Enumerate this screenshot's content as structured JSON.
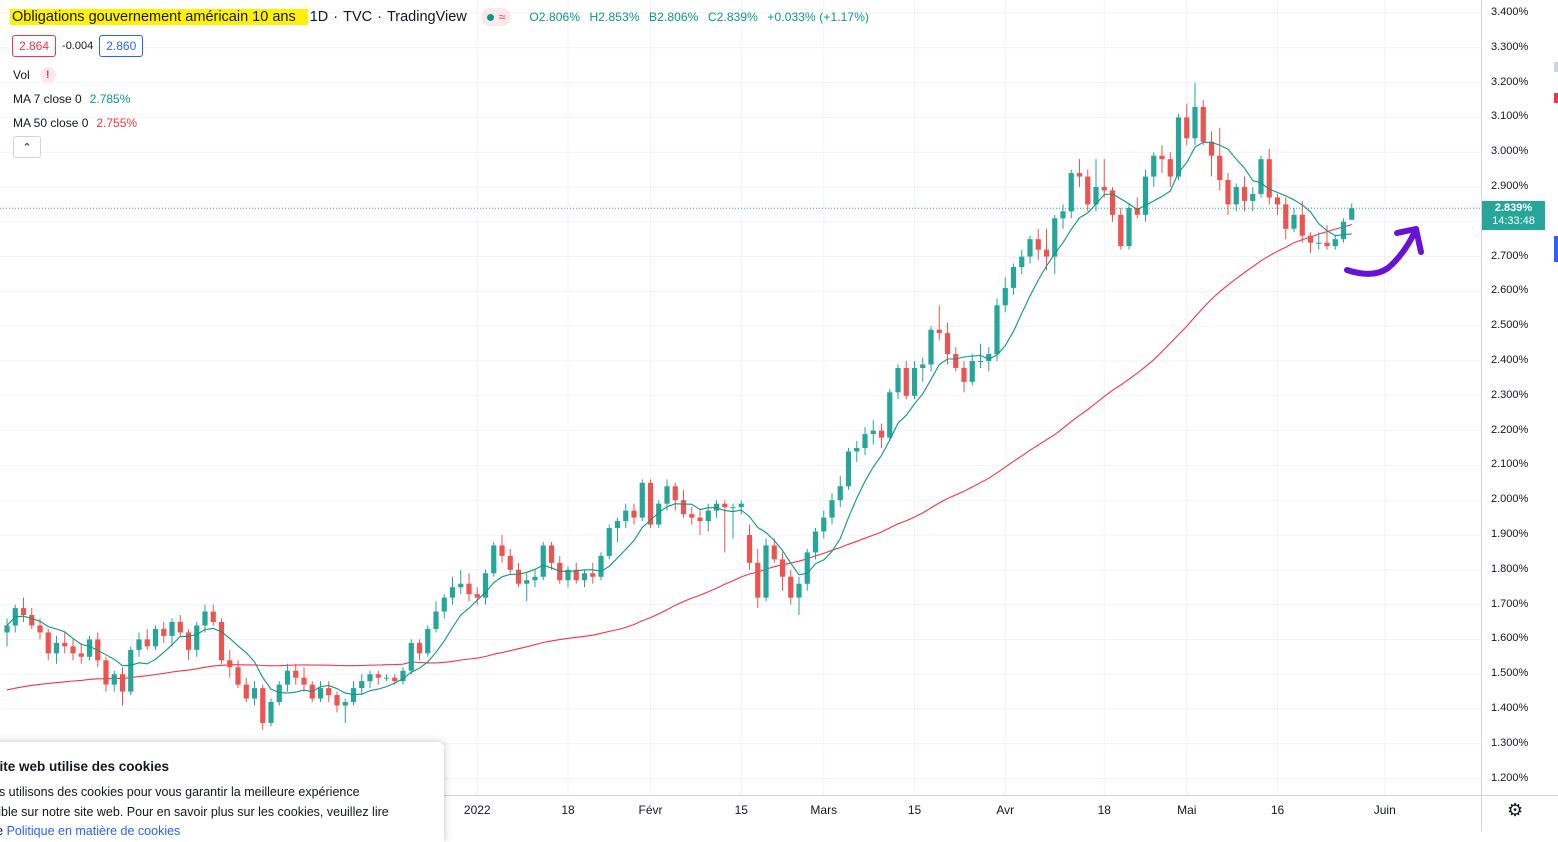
{
  "symbol": {
    "title": "Obligations gouvernement américain 10 ans",
    "interval": "1D",
    "exchange": "TVC",
    "provider": "TradingView",
    "meta_separator": "·",
    "status_icons": [
      "market-open-dot-icon",
      "delayed-wave-icon"
    ],
    "wave_glyph": "≈"
  },
  "ohlc": {
    "open": "O2.806%",
    "high": "H2.853%",
    "low": "B2.806%",
    "close": "C2.839%",
    "change": "+0.033% (+1.17%)"
  },
  "quote": {
    "bid": "2.864",
    "spread": "-0.004",
    "ask": "2.860"
  },
  "indicators": [
    {
      "label": "Vol",
      "warning": "!"
    },
    {
      "label": "MA 7 close 0",
      "value": "2.785%",
      "color": "#089981"
    },
    {
      "label": "MA 50 close 0",
      "value": "2.755%",
      "color": "#f23645"
    }
  ],
  "collapse_glyph": "⌃",
  "price_axis_labels": [
    "3.400%",
    "3.300%",
    "3.200%",
    "3.100%",
    "3.000%",
    "2.900%",
    "2.800%",
    "2.700%",
    "2.600%",
    "2.500%",
    "2.400%",
    "2.300%",
    "2.200%",
    "2.100%",
    "2.000%",
    "1.900%",
    "1.800%",
    "1.700%",
    "1.600%",
    "1.500%",
    "1.400%",
    "1.300%",
    "1.200%"
  ],
  "time_axis_labels": [
    "2022",
    "18",
    "Févr",
    "15",
    "Mars",
    "15",
    "Avr",
    "18",
    "Mai",
    "16",
    "Juin"
  ],
  "last_price_tag": {
    "price": "2.839%",
    "countdown": "14:33:48"
  },
  "settings_glyph": "⚙",
  "cookie_banner": {
    "title": "site web utilise des cookies",
    "line1": "us utilisons des cookies pour vous garantir la meilleure expérience",
    "line2": "sible sur notre site web. Pour en savoir plus sur les cookies, veuillez lire",
    "line3_prefix": "re ",
    "link_text": "Politique en matière de cookies"
  },
  "colors": {
    "up": "#26a69a",
    "down": "#ef5350",
    "ma7": "#089981",
    "ma50": "#f23645",
    "annotation": "#6a11d6",
    "highlight": "#fff200",
    "last_price_line": "#26a69a"
  },
  "chart_data": {
    "type": "candlestick",
    "y_unit": "%",
    "y_range": [
      1.2,
      3.4
    ],
    "last_price": 2.839,
    "annotation": "hand-drawn purple upward arrow pointing at the last candle",
    "candles": [
      {
        "o": 1.62,
        "h": 1.66,
        "l": 1.58,
        "c": 1.64
      },
      {
        "o": 1.64,
        "h": 1.7,
        "l": 1.62,
        "c": 1.69
      },
      {
        "o": 1.69,
        "h": 1.72,
        "l": 1.65,
        "c": 1.67
      },
      {
        "o": 1.67,
        "h": 1.69,
        "l": 1.63,
        "c": 1.64
      },
      {
        "o": 1.64,
        "h": 1.66,
        "l": 1.6,
        "c": 1.62
      },
      {
        "o": 1.62,
        "h": 1.63,
        "l": 1.54,
        "c": 1.56
      },
      {
        "o": 1.56,
        "h": 1.61,
        "l": 1.53,
        "c": 1.59
      },
      {
        "o": 1.59,
        "h": 1.62,
        "l": 1.56,
        "c": 1.58
      },
      {
        "o": 1.58,
        "h": 1.6,
        "l": 1.54,
        "c": 1.56
      },
      {
        "o": 1.56,
        "h": 1.59,
        "l": 1.53,
        "c": 1.55
      },
      {
        "o": 1.55,
        "h": 1.61,
        "l": 1.54,
        "c": 1.6
      },
      {
        "o": 1.6,
        "h": 1.62,
        "l": 1.52,
        "c": 1.54
      },
      {
        "o": 1.54,
        "h": 1.55,
        "l": 1.45,
        "c": 1.47
      },
      {
        "o": 1.47,
        "h": 1.51,
        "l": 1.45,
        "c": 1.5
      },
      {
        "o": 1.5,
        "h": 1.52,
        "l": 1.41,
        "c": 1.45
      },
      {
        "o": 1.45,
        "h": 1.58,
        "l": 1.44,
        "c": 1.57
      },
      {
        "o": 1.57,
        "h": 1.62,
        "l": 1.55,
        "c": 1.6
      },
      {
        "o": 1.6,
        "h": 1.63,
        "l": 1.57,
        "c": 1.58
      },
      {
        "o": 1.58,
        "h": 1.64,
        "l": 1.57,
        "c": 1.63
      },
      {
        "o": 1.63,
        "h": 1.65,
        "l": 1.59,
        "c": 1.61
      },
      {
        "o": 1.61,
        "h": 1.66,
        "l": 1.58,
        "c": 1.65
      },
      {
        "o": 1.65,
        "h": 1.67,
        "l": 1.61,
        "c": 1.62
      },
      {
        "o": 1.62,
        "h": 1.63,
        "l": 1.54,
        "c": 1.57
      },
      {
        "o": 1.57,
        "h": 1.65,
        "l": 1.55,
        "c": 1.64
      },
      {
        "o": 1.64,
        "h": 1.7,
        "l": 1.62,
        "c": 1.68
      },
      {
        "o": 1.68,
        "h": 1.7,
        "l": 1.64,
        "c": 1.65
      },
      {
        "o": 1.65,
        "h": 1.66,
        "l": 1.53,
        "c": 1.54
      },
      {
        "o": 1.54,
        "h": 1.57,
        "l": 1.49,
        "c": 1.52
      },
      {
        "o": 1.52,
        "h": 1.54,
        "l": 1.46,
        "c": 1.47
      },
      {
        "o": 1.47,
        "h": 1.49,
        "l": 1.42,
        "c": 1.43
      },
      {
        "o": 1.43,
        "h": 1.48,
        "l": 1.41,
        "c": 1.46
      },
      {
        "o": 1.46,
        "h": 1.47,
        "l": 1.34,
        "c": 1.36
      },
      {
        "o": 1.36,
        "h": 1.43,
        "l": 1.35,
        "c": 1.42
      },
      {
        "o": 1.42,
        "h": 1.48,
        "l": 1.41,
        "c": 1.47
      },
      {
        "o": 1.47,
        "h": 1.53,
        "l": 1.45,
        "c": 1.51
      },
      {
        "o": 1.51,
        "h": 1.53,
        "l": 1.47,
        "c": 1.49
      },
      {
        "o": 1.49,
        "h": 1.52,
        "l": 1.45,
        "c": 1.47
      },
      {
        "o": 1.47,
        "h": 1.48,
        "l": 1.42,
        "c": 1.43
      },
      {
        "o": 1.43,
        "h": 1.48,
        "l": 1.42,
        "c": 1.46
      },
      {
        "o": 1.46,
        "h": 1.48,
        "l": 1.42,
        "c": 1.44
      },
      {
        "o": 1.44,
        "h": 1.45,
        "l": 1.39,
        "c": 1.41
      },
      {
        "o": 1.41,
        "h": 1.43,
        "l": 1.36,
        "c": 1.42
      },
      {
        "o": 1.42,
        "h": 1.48,
        "l": 1.41,
        "c": 1.46
      },
      {
        "o": 1.46,
        "h": 1.5,
        "l": 1.44,
        "c": 1.48
      },
      {
        "o": 1.48,
        "h": 1.51,
        "l": 1.46,
        "c": 1.5
      },
      {
        "o": 1.5,
        "h": 1.51,
        "l": 1.47,
        "c": 1.49
      },
      {
        "o": 1.49,
        "h": 1.5,
        "l": 1.48,
        "c": 1.49
      },
      {
        "o": 1.49,
        "h": 1.5,
        "l": 1.47,
        "c": 1.48
      },
      {
        "o": 1.48,
        "h": 1.52,
        "l": 1.47,
        "c": 1.51
      },
      {
        "o": 1.51,
        "h": 1.6,
        "l": 1.5,
        "c": 1.59
      },
      {
        "o": 1.59,
        "h": 1.6,
        "l": 1.54,
        "c": 1.56
      },
      {
        "o": 1.56,
        "h": 1.64,
        "l": 1.55,
        "c": 1.63
      },
      {
        "o": 1.63,
        "h": 1.71,
        "l": 1.62,
        "c": 1.68
      },
      {
        "o": 1.68,
        "h": 1.73,
        "l": 1.66,
        "c": 1.72
      },
      {
        "o": 1.72,
        "h": 1.78,
        "l": 1.7,
        "c": 1.75
      },
      {
        "o": 1.75,
        "h": 1.8,
        "l": 1.73,
        "c": 1.76
      },
      {
        "o": 1.76,
        "h": 1.79,
        "l": 1.71,
        "c": 1.73
      },
      {
        "o": 1.73,
        "h": 1.75,
        "l": 1.7,
        "c": 1.72
      },
      {
        "o": 1.72,
        "h": 1.8,
        "l": 1.7,
        "c": 1.79
      },
      {
        "o": 1.79,
        "h": 1.88,
        "l": 1.78,
        "c": 1.87
      },
      {
        "o": 1.87,
        "h": 1.9,
        "l": 1.82,
        "c": 1.84
      },
      {
        "o": 1.84,
        "h": 1.86,
        "l": 1.79,
        "c": 1.8
      },
      {
        "o": 1.8,
        "h": 1.82,
        "l": 1.75,
        "c": 1.76
      },
      {
        "o": 1.76,
        "h": 1.79,
        "l": 1.71,
        "c": 1.77
      },
      {
        "o": 1.77,
        "h": 1.8,
        "l": 1.75,
        "c": 1.78
      },
      {
        "o": 1.78,
        "h": 1.88,
        "l": 1.77,
        "c": 1.87
      },
      {
        "o": 1.87,
        "h": 1.88,
        "l": 1.8,
        "c": 1.82
      },
      {
        "o": 1.82,
        "h": 1.84,
        "l": 1.76,
        "c": 1.77
      },
      {
        "o": 1.77,
        "h": 1.81,
        "l": 1.75,
        "c": 1.8
      },
      {
        "o": 1.8,
        "h": 1.82,
        "l": 1.76,
        "c": 1.77
      },
      {
        "o": 1.77,
        "h": 1.8,
        "l": 1.75,
        "c": 1.79
      },
      {
        "o": 1.79,
        "h": 1.82,
        "l": 1.76,
        "c": 1.78
      },
      {
        "o": 1.78,
        "h": 1.85,
        "l": 1.77,
        "c": 1.84
      },
      {
        "o": 1.84,
        "h": 1.93,
        "l": 1.83,
        "c": 1.92
      },
      {
        "o": 1.92,
        "h": 1.95,
        "l": 1.88,
        "c": 1.94
      },
      {
        "o": 1.94,
        "h": 1.99,
        "l": 1.92,
        "c": 1.97
      },
      {
        "o": 1.97,
        "h": 1.99,
        "l": 1.93,
        "c": 1.95
      },
      {
        "o": 1.95,
        "h": 2.06,
        "l": 1.94,
        "c": 2.05
      },
      {
        "o": 2.05,
        "h": 2.06,
        "l": 1.92,
        "c": 1.93
      },
      {
        "o": 1.93,
        "h": 2.0,
        "l": 1.92,
        "c": 1.99
      },
      {
        "o": 1.99,
        "h": 2.06,
        "l": 1.97,
        "c": 2.04
      },
      {
        "o": 2.04,
        "h": 2.05,
        "l": 1.97,
        "c": 2.0
      },
      {
        "o": 2.0,
        "h": 2.03,
        "l": 1.95,
        "c": 1.96
      },
      {
        "o": 1.96,
        "h": 1.98,
        "l": 1.93,
        "c": 1.95
      },
      {
        "o": 1.95,
        "h": 1.97,
        "l": 1.9,
        "c": 1.94
      },
      {
        "o": 1.94,
        "h": 1.99,
        "l": 1.91,
        "c": 1.97
      },
      {
        "o": 1.97,
        "h": 2.0,
        "l": 1.95,
        "c": 1.99
      },
      {
        "o": 1.99,
        "h": 2.0,
        "l": 1.85,
        "c": 1.98
      },
      {
        "o": 1.98,
        "h": 1.99,
        "l": 1.89,
        "c": 1.98
      },
      {
        "o": 1.98,
        "h": 2.0,
        "l": 1.96,
        "c": 1.99
      },
      {
        "o": 1.9,
        "h": 1.93,
        "l": 1.8,
        "c": 1.82
      },
      {
        "o": 1.82,
        "h": 1.86,
        "l": 1.69,
        "c": 1.72
      },
      {
        "o": 1.72,
        "h": 1.89,
        "l": 1.71,
        "c": 1.87
      },
      {
        "o": 1.87,
        "h": 1.89,
        "l": 1.82,
        "c": 1.83
      },
      {
        "o": 1.83,
        "h": 1.85,
        "l": 1.74,
        "c": 1.78
      },
      {
        "o": 1.78,
        "h": 1.8,
        "l": 1.7,
        "c": 1.72
      },
      {
        "o": 1.72,
        "h": 1.78,
        "l": 1.67,
        "c": 1.76
      },
      {
        "o": 1.76,
        "h": 1.86,
        "l": 1.74,
        "c": 1.85
      },
      {
        "o": 1.85,
        "h": 1.92,
        "l": 1.83,
        "c": 1.91
      },
      {
        "o": 1.91,
        "h": 1.97,
        "l": 1.89,
        "c": 1.95
      },
      {
        "o": 1.95,
        "h": 2.02,
        "l": 1.93,
        "c": 2.0
      },
      {
        "o": 2.0,
        "h": 2.07,
        "l": 1.98,
        "c": 2.04
      },
      {
        "o": 2.04,
        "h": 2.15,
        "l": 2.03,
        "c": 2.14
      },
      {
        "o": 2.14,
        "h": 2.17,
        "l": 2.11,
        "c": 2.15
      },
      {
        "o": 2.15,
        "h": 2.21,
        "l": 2.13,
        "c": 2.19
      },
      {
        "o": 2.19,
        "h": 2.23,
        "l": 2.16,
        "c": 2.2
      },
      {
        "o": 2.2,
        "h": 2.22,
        "l": 2.15,
        "c": 2.18
      },
      {
        "o": 2.18,
        "h": 2.32,
        "l": 2.17,
        "c": 2.31
      },
      {
        "o": 2.31,
        "h": 2.39,
        "l": 2.29,
        "c": 2.38
      },
      {
        "o": 2.38,
        "h": 2.4,
        "l": 2.29,
        "c": 2.3
      },
      {
        "o": 2.3,
        "h": 2.4,
        "l": 2.29,
        "c": 2.38
      },
      {
        "o": 2.38,
        "h": 2.41,
        "l": 2.34,
        "c": 2.39
      },
      {
        "o": 2.39,
        "h": 2.5,
        "l": 2.37,
        "c": 2.49
      },
      {
        "o": 2.49,
        "h": 2.56,
        "l": 2.46,
        "c": 2.48
      },
      {
        "o": 2.48,
        "h": 2.51,
        "l": 2.39,
        "c": 2.42
      },
      {
        "o": 2.42,
        "h": 2.44,
        "l": 2.37,
        "c": 2.38
      },
      {
        "o": 2.38,
        "h": 2.4,
        "l": 2.31,
        "c": 2.34
      },
      {
        "o": 2.34,
        "h": 2.42,
        "l": 2.33,
        "c": 2.4
      },
      {
        "o": 2.4,
        "h": 2.45,
        "l": 2.38,
        "c": 2.4
      },
      {
        "o": 2.4,
        "h": 2.44,
        "l": 2.37,
        "c": 2.42
      },
      {
        "o": 2.42,
        "h": 2.58,
        "l": 2.4,
        "c": 2.56
      },
      {
        "o": 2.56,
        "h": 2.64,
        "l": 2.54,
        "c": 2.61
      },
      {
        "o": 2.61,
        "h": 2.68,
        "l": 2.59,
        "c": 2.67
      },
      {
        "o": 2.67,
        "h": 2.72,
        "l": 2.65,
        "c": 2.7
      },
      {
        "o": 2.7,
        "h": 2.76,
        "l": 2.68,
        "c": 2.75
      },
      {
        "o": 2.75,
        "h": 2.78,
        "l": 2.69,
        "c": 2.72
      },
      {
        "o": 2.72,
        "h": 2.78,
        "l": 2.66,
        "c": 2.7
      },
      {
        "o": 2.7,
        "h": 2.82,
        "l": 2.65,
        "c": 2.81
      },
      {
        "o": 2.81,
        "h": 2.85,
        "l": 2.78,
        "c": 2.83
      },
      {
        "o": 2.83,
        "h": 2.95,
        "l": 2.81,
        "c": 2.94
      },
      {
        "o": 2.94,
        "h": 2.98,
        "l": 2.9,
        "c": 2.93
      },
      {
        "o": 2.93,
        "h": 2.95,
        "l": 2.83,
        "c": 2.85
      },
      {
        "o": 2.85,
        "h": 2.98,
        "l": 2.83,
        "c": 2.9
      },
      {
        "o": 2.9,
        "h": 2.98,
        "l": 2.87,
        "c": 2.89
      },
      {
        "o": 2.89,
        "h": 2.9,
        "l": 2.8,
        "c": 2.82
      },
      {
        "o": 2.82,
        "h": 2.84,
        "l": 2.72,
        "c": 2.73
      },
      {
        "o": 2.73,
        "h": 2.85,
        "l": 2.72,
        "c": 2.84
      },
      {
        "o": 2.84,
        "h": 2.87,
        "l": 2.81,
        "c": 2.82
      },
      {
        "o": 2.82,
        "h": 2.95,
        "l": 2.8,
        "c": 2.93
      },
      {
        "o": 2.93,
        "h": 3.0,
        "l": 2.9,
        "c": 2.99
      },
      {
        "o": 2.99,
        "h": 3.02,
        "l": 2.94,
        "c": 2.98
      },
      {
        "o": 2.98,
        "h": 3.0,
        "l": 2.9,
        "c": 2.93
      },
      {
        "o": 2.93,
        "h": 3.11,
        "l": 2.92,
        "c": 3.1
      },
      {
        "o": 3.1,
        "h": 3.14,
        "l": 3.02,
        "c": 3.04
      },
      {
        "o": 3.04,
        "h": 3.2,
        "l": 3.02,
        "c": 3.13
      },
      {
        "o": 3.13,
        "h": 3.15,
        "l": 3.02,
        "c": 3.03
      },
      {
        "o": 3.03,
        "h": 3.06,
        "l": 2.93,
        "c": 2.99
      },
      {
        "o": 2.99,
        "h": 3.07,
        "l": 2.89,
        "c": 2.92
      },
      {
        "o": 2.92,
        "h": 2.94,
        "l": 2.82,
        "c": 2.85
      },
      {
        "o": 2.85,
        "h": 2.91,
        "l": 2.83,
        "c": 2.9
      },
      {
        "o": 2.9,
        "h": 2.93,
        "l": 2.83,
        "c": 2.86
      },
      {
        "o": 2.86,
        "h": 2.9,
        "l": 2.83,
        "c": 2.88
      },
      {
        "o": 2.88,
        "h": 2.99,
        "l": 2.87,
        "c": 2.98
      },
      {
        "o": 2.98,
        "h": 3.01,
        "l": 2.85,
        "c": 2.87
      },
      {
        "o": 2.87,
        "h": 2.88,
        "l": 2.82,
        "c": 2.85
      },
      {
        "o": 2.85,
        "h": 2.87,
        "l": 2.75,
        "c": 2.78
      },
      {
        "o": 2.78,
        "h": 2.84,
        "l": 2.77,
        "c": 2.82
      },
      {
        "o": 2.82,
        "h": 2.86,
        "l": 2.74,
        "c": 2.76
      },
      {
        "o": 2.76,
        "h": 2.77,
        "l": 2.71,
        "c": 2.74
      },
      {
        "o": 2.74,
        "h": 2.77,
        "l": 2.72,
        "c": 2.74
      },
      {
        "o": 2.74,
        "h": 2.79,
        "l": 2.72,
        "c": 2.73
      },
      {
        "o": 2.73,
        "h": 2.76,
        "l": 2.72,
        "c": 2.75
      },
      {
        "o": 2.75,
        "h": 2.81,
        "l": 2.74,
        "c": 2.8
      },
      {
        "o": 2.806,
        "h": 2.853,
        "l": 2.806,
        "c": 2.839
      }
    ]
  }
}
